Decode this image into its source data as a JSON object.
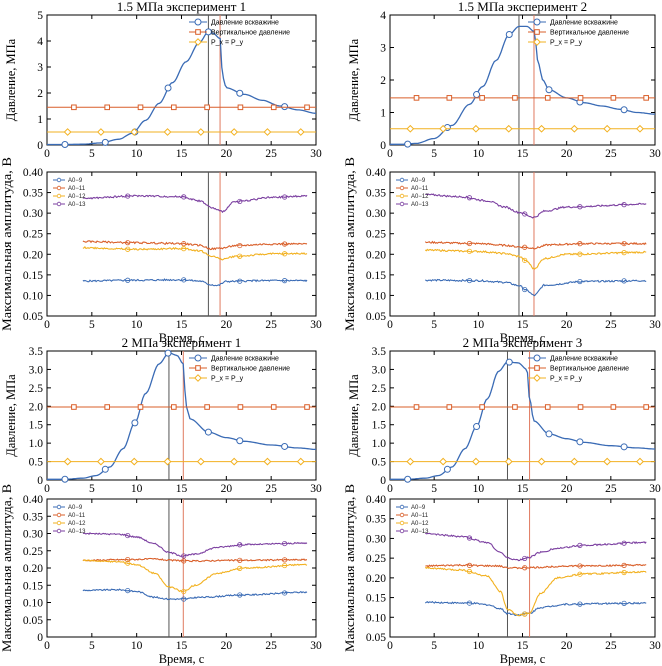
{
  "chart_data": [
    {
      "type": "line",
      "title": "1.5 МПа эксперимент 1",
      "ylabel": "Давление, МПа",
      "xlim": [
        0,
        30
      ],
      "ylim": [
        0,
        5
      ],
      "xticks": [
        "0",
        "5",
        "10",
        "15",
        "20",
        "25",
        "30"
      ],
      "yticks": [
        "0",
        "1",
        "2",
        "3",
        "4",
        "5"
      ],
      "legend": {
        "position": "top-right",
        "items": [
          "Давление вскважине",
          "Вертикальное давление",
          "P_x = P_y"
        ]
      },
      "vlines": [
        18.0,
        19.3
      ],
      "series": [
        {
          "name": "Давление вскважине",
          "color": "#3a6bb5",
          "marker": "circle",
          "x": [
            0,
            2,
            4,
            6,
            8,
            9.5,
            11,
            12.5,
            14,
            15.5,
            17,
            18,
            18.5,
            19.3,
            19.6,
            20,
            22,
            24,
            26,
            28,
            30
          ],
          "y": [
            0.02,
            0.02,
            0.03,
            0.08,
            0.22,
            0.45,
            0.95,
            1.6,
            2.4,
            3.2,
            3.95,
            4.35,
            4.3,
            4.1,
            2.6,
            2.2,
            1.95,
            1.72,
            1.5,
            1.35,
            1.22
          ]
        },
        {
          "name": "Вертикальное давление",
          "color": "#d95f2a",
          "marker": "square",
          "x": [
            0,
            30
          ],
          "y": [
            1.45,
            1.45
          ]
        },
        {
          "name": "P_x = P_y",
          "color": "#f2b120",
          "marker": "diamond",
          "x": [
            0,
            30
          ],
          "y": [
            0.5,
            0.5
          ]
        }
      ]
    },
    {
      "type": "line",
      "title": "1.5 МПа эксперимент 2",
      "ylabel": "Давление, МПа",
      "xlim": [
        0,
        30
      ],
      "ylim": [
        0,
        4
      ],
      "xticks": [
        "0",
        "5",
        "10",
        "15",
        "20",
        "25",
        "30"
      ],
      "yticks": [
        "0",
        "1",
        "2",
        "3",
        "4"
      ],
      "legend": {
        "position": "top-right",
        "items": [
          "Давление вскважине",
          "Вертикальное давление",
          "P_x = P_y"
        ]
      },
      "vlines": [
        14.6,
        16.3
      ],
      "series": [
        {
          "name": "Давление вскважине",
          "color": "#3a6bb5",
          "marker": "circle",
          "x": [
            0,
            1.5,
            3,
            5,
            7,
            9,
            10.5,
            12,
            13.5,
            14.6,
            15.5,
            16.3,
            16.8,
            17.3,
            18,
            20,
            22,
            24,
            26,
            28,
            30
          ],
          "y": [
            0.02,
            0.02,
            0.05,
            0.2,
            0.6,
            1.25,
            1.8,
            2.6,
            3.4,
            3.65,
            3.65,
            3.5,
            2.5,
            2.0,
            1.7,
            1.45,
            1.3,
            1.2,
            1.1,
            1.0,
            0.95
          ]
        },
        {
          "name": "Вертикальное давление",
          "color": "#d95f2a",
          "marker": "square",
          "x": [
            0,
            30
          ],
          "y": [
            1.45,
            1.45
          ]
        },
        {
          "name": "P_x = P_y",
          "color": "#f2b120",
          "marker": "diamond",
          "x": [
            0,
            30
          ],
          "y": [
            0.5,
            0.5
          ]
        }
      ]
    },
    {
      "type": "line",
      "xlabel": "Время, с",
      "ylabel": "Максимальная амплитуда, В",
      "xlim": [
        0,
        30
      ],
      "ylim": [
        0.05,
        0.4
      ],
      "xticks": [
        "0",
        "5",
        "10",
        "15",
        "20",
        "25",
        "30"
      ],
      "yticks": [
        "0.05",
        "0.10",
        "0.15",
        "0.20",
        "0.25",
        "0.30",
        "0.35",
        "0.40"
      ],
      "legend": {
        "position": "top-left",
        "items": [
          "A0−9",
          "A0−11",
          "A0−12",
          "A0−13"
        ]
      },
      "vlines": [
        18.0,
        19.3
      ],
      "series": [
        {
          "name": "A0−9",
          "color": "#3a6bb5",
          "x": [
            4,
            10,
            15,
            17,
            18.3,
            19,
            20,
            24,
            29
          ],
          "y": [
            0.135,
            0.137,
            0.138,
            0.135,
            0.126,
            0.124,
            0.134,
            0.136,
            0.136
          ]
        },
        {
          "name": "A0−11",
          "color": "#d95f2a",
          "x": [
            4,
            10,
            15,
            17,
            18.3,
            19.5,
            21,
            25,
            29
          ],
          "y": [
            0.231,
            0.228,
            0.226,
            0.222,
            0.213,
            0.215,
            0.221,
            0.225,
            0.225
          ]
        },
        {
          "name": "A0−12",
          "color": "#f2b120",
          "x": [
            4,
            10,
            15,
            17,
            18.3,
            19.5,
            21,
            25,
            29
          ],
          "y": [
            0.216,
            0.212,
            0.214,
            0.209,
            0.196,
            0.188,
            0.195,
            0.201,
            0.202
          ]
        },
        {
          "name": "A0−13",
          "color": "#7b3fa0",
          "x": [
            4,
            10,
            15,
            17,
            18.5,
            19.5,
            21,
            25,
            29
          ],
          "y": [
            0.336,
            0.342,
            0.34,
            0.33,
            0.312,
            0.304,
            0.328,
            0.338,
            0.342
          ]
        }
      ]
    },
    {
      "type": "line",
      "xlabel": "Время, с",
      "ylabel": "Максимальная амплитуда, В",
      "xlim": [
        0,
        30
      ],
      "ylim": [
        0.05,
        0.4
      ],
      "xticks": [
        "0",
        "5",
        "10",
        "15",
        "20",
        "25",
        "30"
      ],
      "yticks": [
        "0.05",
        "0.10",
        "0.15",
        "0.20",
        "0.25",
        "0.30",
        "0.35",
        "0.40"
      ],
      "legend": {
        "position": "top-left",
        "items": [
          "A0−9",
          "A0−11",
          "A0−12",
          "A0−13"
        ]
      },
      "vlines": [
        14.6,
        16.3
      ],
      "series": [
        {
          "name": "A0−9",
          "color": "#3a6bb5",
          "x": [
            4,
            10,
            13,
            14.6,
            15.5,
            16.3,
            17.5,
            22,
            29
          ],
          "y": [
            0.137,
            0.136,
            0.132,
            0.124,
            0.112,
            0.1,
            0.125,
            0.134,
            0.136
          ]
        },
        {
          "name": "A0−11",
          "color": "#d95f2a",
          "x": [
            4,
            10,
            13,
            14.6,
            16.3,
            18,
            22,
            29
          ],
          "y": [
            0.229,
            0.226,
            0.222,
            0.218,
            0.215,
            0.223,
            0.226,
            0.226
          ]
        },
        {
          "name": "A0−12",
          "color": "#f2b120",
          "x": [
            4,
            10,
            13,
            14.6,
            15.5,
            16.3,
            17.5,
            20,
            29
          ],
          "y": [
            0.21,
            0.207,
            0.202,
            0.195,
            0.183,
            0.165,
            0.19,
            0.2,
            0.205
          ]
        },
        {
          "name": "A0−13",
          "color": "#7b3fa0",
          "x": [
            4,
            8,
            11,
            13,
            14.6,
            16.3,
            17.5,
            20,
            29
          ],
          "y": [
            0.345,
            0.34,
            0.33,
            0.315,
            0.302,
            0.29,
            0.305,
            0.315,
            0.322
          ]
        }
      ]
    },
    {
      "type": "line",
      "title": "2 МПа эксперимент 1",
      "ylabel": "Давление, МПа",
      "xlim": [
        0,
        30
      ],
      "ylim": [
        0,
        3.5
      ],
      "xticks": [
        "0",
        "5",
        "10",
        "15",
        "20",
        "25",
        "30"
      ],
      "yticks": [
        "0",
        "0.5",
        "1.0",
        "1.5",
        "2.0",
        "2.5",
        "3.0",
        "3.5"
      ],
      "legend": {
        "position": "top-right",
        "items": [
          "Давление вскважине",
          "Вертикальное давление",
          "P_x = P_y"
        ]
      },
      "vlines": [
        13.6,
        15.2
      ],
      "series": [
        {
          "name": "Давление вскважине",
          "color": "#3a6bb5",
          "marker": "circle",
          "x": [
            0,
            2,
            4,
            5.5,
            7,
            8.5,
            9.8,
            11,
            12.5,
            13.6,
            14.5,
            15.2,
            15.5,
            16,
            18,
            20,
            22,
            25,
            28,
            30
          ],
          "y": [
            0.02,
            0.02,
            0.05,
            0.12,
            0.35,
            0.85,
            1.55,
            2.35,
            3.15,
            3.45,
            3.38,
            3.15,
            2.0,
            1.65,
            1.3,
            1.15,
            1.05,
            0.95,
            0.87,
            0.83
          ]
        },
        {
          "name": "Вертикальное давление",
          "color": "#d95f2a",
          "marker": "square",
          "x": [
            0,
            30
          ],
          "y": [
            1.98,
            1.98
          ]
        },
        {
          "name": "P_x = P_y",
          "color": "#f2b120",
          "marker": "diamond",
          "x": [
            0,
            30
          ],
          "y": [
            0.5,
            0.5
          ]
        }
      ]
    },
    {
      "type": "line",
      "title": "2 МПа эксперимент 3",
      "ylabel": "Давление, МПа",
      "xlim": [
        0,
        30
      ],
      "ylim": [
        0,
        3.5
      ],
      "xticks": [
        "0",
        "5",
        "10",
        "15",
        "20",
        "25",
        "30"
      ],
      "yticks": [
        "0",
        "0.5",
        "1.0",
        "1.5",
        "2.0",
        "2.5",
        "3.0",
        "3.5"
      ],
      "legend": {
        "position": "top-right",
        "items": [
          "Давление вскважине",
          "Вертикальное давление",
          "P_x = P_y"
        ]
      },
      "vlines": [
        13.3,
        15.8
      ],
      "series": [
        {
          "name": "Давление вскважине",
          "color": "#3a6bb5",
          "marker": "circle",
          "x": [
            0,
            2,
            4,
            5.5,
            7,
            8.5,
            9.8,
            11,
            12.3,
            13.3,
            14.5,
            15.5,
            15.8,
            16.3,
            18,
            20,
            22,
            25,
            28,
            30
          ],
          "y": [
            0.02,
            0.02,
            0.05,
            0.12,
            0.35,
            0.85,
            1.45,
            2.2,
            2.95,
            3.2,
            3.18,
            3.0,
            2.2,
            1.6,
            1.25,
            1.12,
            1.02,
            0.93,
            0.87,
            0.84
          ]
        },
        {
          "name": "Вертикальное давление",
          "color": "#d95f2a",
          "marker": "square",
          "x": [
            0,
            30
          ],
          "y": [
            1.98,
            1.98
          ]
        },
        {
          "name": "P_x = P_y",
          "color": "#f2b120",
          "marker": "diamond",
          "x": [
            0,
            30
          ],
          "y": [
            0.5,
            0.5
          ]
        }
      ]
    },
    {
      "type": "line",
      "xlabel": "Время, с",
      "ylabel": "Максимальная амплитуда, В",
      "xlim": [
        0,
        30
      ],
      "ylim": [
        0,
        0.4
      ],
      "xticks": [
        "0",
        "5",
        "10",
        "15",
        "20",
        "25",
        "30"
      ],
      "yticks": [
        "0",
        "0.05",
        "0.10",
        "0.15",
        "0.20",
        "0.25",
        "0.30",
        "0.35",
        "0.40"
      ],
      "legend": {
        "position": "top-left",
        "items": [
          "A0−9",
          "A0−11",
          "A0−12",
          "A0−13"
        ]
      },
      "vlines": [
        13.6,
        15.2
      ],
      "series": [
        {
          "name": "A0−9",
          "color": "#3a6bb5",
          "x": [
            4,
            8,
            10,
            12,
            13.6,
            15.2,
            17,
            22,
            29
          ],
          "y": [
            0.135,
            0.137,
            0.132,
            0.115,
            0.11,
            0.11,
            0.115,
            0.122,
            0.13
          ]
        },
        {
          "name": "A0−11",
          "color": "#d95f2a",
          "x": [
            4,
            8,
            12,
            14,
            16,
            20,
            29
          ],
          "y": [
            0.222,
            0.224,
            0.226,
            0.222,
            0.22,
            0.222,
            0.224
          ]
        },
        {
          "name": "A0−12",
          "color": "#f2b120",
          "x": [
            4,
            8,
            10,
            12,
            13.6,
            15.2,
            16.5,
            19,
            22,
            29
          ],
          "y": [
            0.222,
            0.218,
            0.21,
            0.185,
            0.145,
            0.132,
            0.15,
            0.185,
            0.2,
            0.21
          ]
        },
        {
          "name": "A0−13",
          "color": "#7b3fa0",
          "x": [
            4,
            8,
            10,
            12,
            13.6,
            15.2,
            16.5,
            19,
            22,
            29
          ],
          "y": [
            0.3,
            0.298,
            0.29,
            0.27,
            0.245,
            0.235,
            0.24,
            0.26,
            0.268,
            0.272
          ]
        }
      ]
    },
    {
      "type": "line",
      "xlabel": "Время, с",
      "ylabel": "Максимальная амплитуда, В",
      "xlim": [
        0,
        30
      ],
      "ylim": [
        0.05,
        0.4
      ],
      "xticks": [
        "0",
        "5",
        "10",
        "15",
        "20",
        "25",
        "30"
      ],
      "yticks": [
        "0.05",
        "0.10",
        "0.15",
        "0.20",
        "0.25",
        "0.30",
        "0.35",
        "0.40"
      ],
      "legend": {
        "position": "top-left",
        "items": [
          "A0−9",
          "A0−11",
          "A0−12",
          "A0−13"
        ]
      },
      "vlines": [
        13.3,
        15.8
      ],
      "series": [
        {
          "name": "A0−9",
          "color": "#3a6bb5",
          "x": [
            4,
            9,
            11,
            12.5,
            13.3,
            14.5,
            15.8,
            17,
            20,
            25,
            29
          ],
          "y": [
            0.138,
            0.136,
            0.132,
            0.122,
            0.11,
            0.106,
            0.11,
            0.125,
            0.133,
            0.135,
            0.136
          ]
        },
        {
          "name": "A0−11",
          "color": "#d95f2a",
          "x": [
            4,
            8,
            12,
            14,
            16,
            20,
            29
          ],
          "y": [
            0.23,
            0.232,
            0.23,
            0.225,
            0.226,
            0.23,
            0.232
          ]
        },
        {
          "name": "A0−12",
          "color": "#f2b120",
          "x": [
            4,
            8,
            11,
            12.5,
            13.3,
            14.5,
            15.8,
            17,
            19,
            22,
            29
          ],
          "y": [
            0.225,
            0.22,
            0.205,
            0.165,
            0.12,
            0.105,
            0.11,
            0.16,
            0.2,
            0.21,
            0.215
          ]
        },
        {
          "name": "A0−13",
          "color": "#7b3fa0",
          "x": [
            4,
            8,
            11,
            12.5,
            13.3,
            14.5,
            15.8,
            17,
            19,
            22,
            29
          ],
          "y": [
            0.312,
            0.305,
            0.29,
            0.265,
            0.25,
            0.245,
            0.252,
            0.265,
            0.275,
            0.283,
            0.29
          ]
        }
      ]
    }
  ]
}
